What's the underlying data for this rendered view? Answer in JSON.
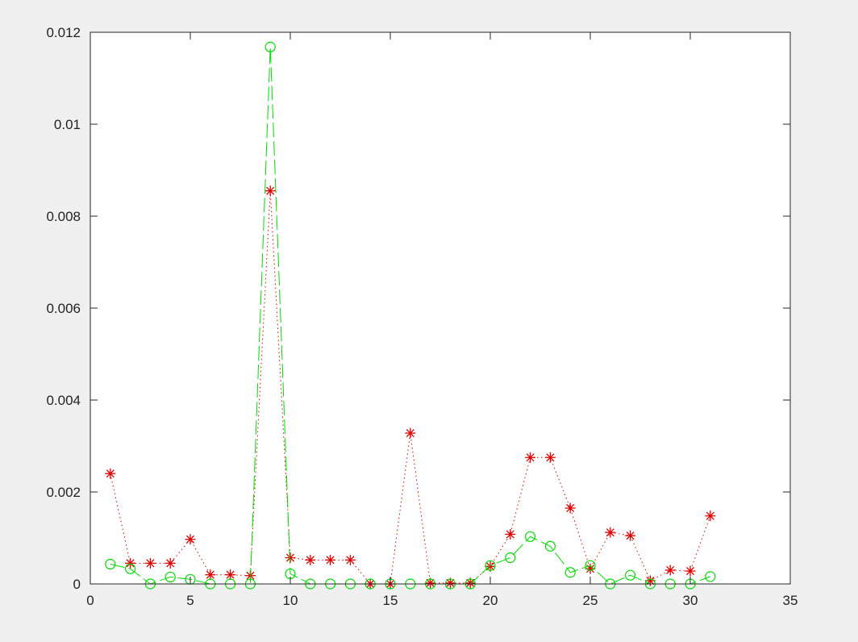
{
  "chart_data": {
    "type": "line",
    "title": "",
    "xlabel": "",
    "ylabel": "",
    "xlim": [
      0,
      35
    ],
    "ylim": [
      0,
      0.012
    ],
    "xticks": [
      0,
      5,
      10,
      15,
      20,
      25,
      30,
      35
    ],
    "yticks": [
      0,
      0.002,
      0.004,
      0.006,
      0.008,
      0.01,
      0.012
    ],
    "xtick_labels": [
      "0",
      "5",
      "10",
      "15",
      "20",
      "25",
      "30",
      "35"
    ],
    "ytick_labels": [
      "0",
      "0.002",
      "0.004",
      "0.006",
      "0.008",
      "0.01",
      "0.012"
    ],
    "grid": false,
    "legend": false,
    "x": [
      1,
      2,
      3,
      4,
      5,
      6,
      7,
      8,
      9,
      10,
      11,
      12,
      13,
      14,
      15,
      16,
      17,
      18,
      19,
      20,
      21,
      22,
      23,
      24,
      25,
      26,
      27,
      28,
      29,
      30,
      31
    ],
    "series": [
      {
        "marker": "asterisk",
        "line_style": "dotted",
        "color": "#e00000",
        "values": [
          0.0024,
          0.00045,
          0.00045,
          0.00045,
          0.00097,
          0.0002,
          0.0002,
          0.00018,
          0.00855,
          0.00057,
          0.00052,
          0.00052,
          0.00052,
          0.0,
          0.0,
          0.00328,
          2e-05,
          2e-05,
          2e-05,
          0.00038,
          0.00108,
          0.00275,
          0.00275,
          0.00165,
          0.00033,
          0.00112,
          0.00105,
          7e-05,
          0.0003,
          0.00028,
          0.00148
        ]
      },
      {
        "marker": "circle",
        "line_style": "solid",
        "line_style_note": "",
        "color": "#00dd00",
        "values": [
          0.00043,
          0.00033,
          0.0,
          0.00015,
          0.0001,
          0.0,
          0.0,
          0.0,
          0.01168,
          0.00022,
          0.0,
          0.0,
          0.0,
          0.0,
          0.0,
          0.0,
          0.0,
          0.0,
          0.0,
          0.0004,
          0.00057,
          0.00103,
          0.00082,
          0.00025,
          0.0004,
          0.0,
          0.00019,
          0.0,
          0.0,
          0.0,
          0.00016
        ]
      }
    ]
  }
}
